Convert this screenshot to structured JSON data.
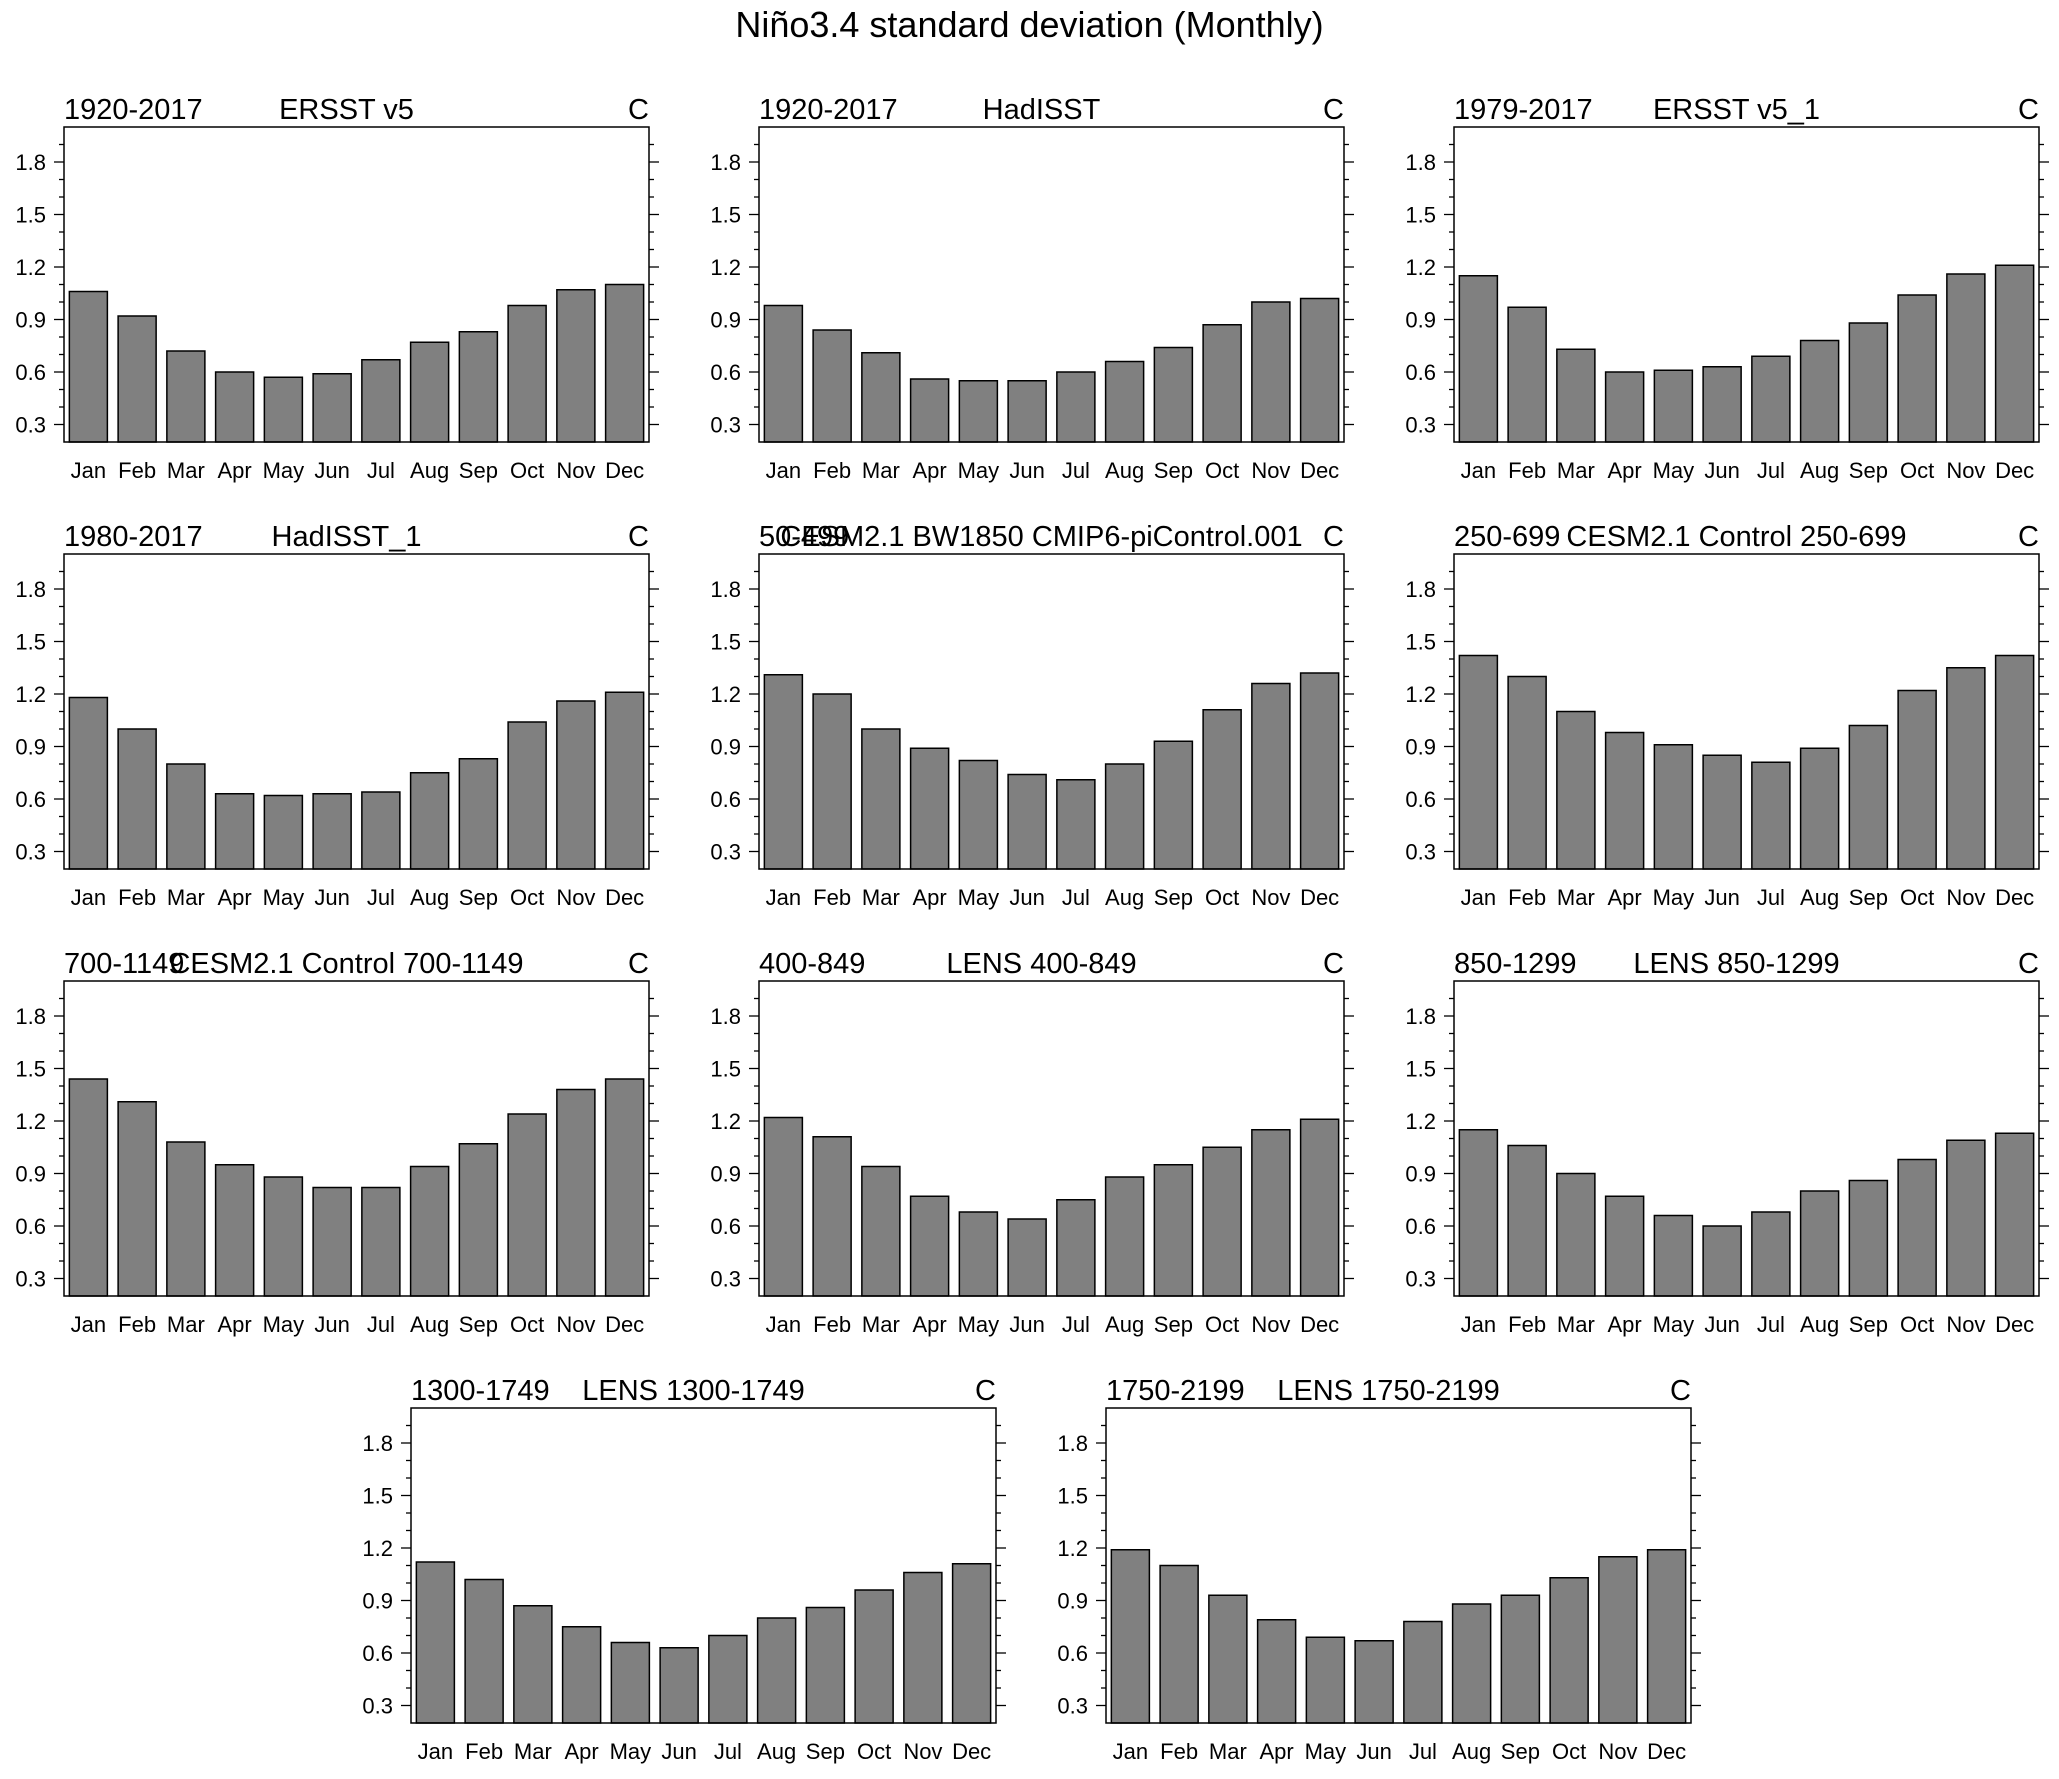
{
  "figure_title": "Niño3.4 standard deviation (Monthly)",
  "colors": {
    "bar_fill": "#808080",
    "bar_stroke": "#000000",
    "axis": "#000000",
    "background": "#ffffff"
  },
  "chart_data": [
    {
      "type": "bar",
      "title_left": "1920-2017",
      "title_center": "ERSST v5",
      "title_right": "C",
      "categories": [
        "Jan",
        "Feb",
        "Mar",
        "Apr",
        "May",
        "Jun",
        "Jul",
        "Aug",
        "Sep",
        "Oct",
        "Nov",
        "Dec"
      ],
      "values": [
        1.06,
        0.92,
        0.72,
        0.6,
        0.57,
        0.59,
        0.67,
        0.77,
        0.83,
        0.98,
        1.07,
        1.1
      ],
      "yticks": [
        "0.3",
        "0.6",
        "0.9",
        "1.2",
        "1.5",
        "1.8"
      ],
      "ylim": [
        0.2,
        2.0
      ]
    },
    {
      "type": "bar",
      "title_left": "1920-2017",
      "title_center": "HadISST",
      "title_right": "C",
      "categories": [
        "Jan",
        "Feb",
        "Mar",
        "Apr",
        "May",
        "Jun",
        "Jul",
        "Aug",
        "Sep",
        "Oct",
        "Nov",
        "Dec"
      ],
      "values": [
        0.98,
        0.84,
        0.71,
        0.56,
        0.55,
        0.55,
        0.6,
        0.66,
        0.74,
        0.87,
        1.0,
        1.02
      ],
      "yticks": [
        "0.3",
        "0.6",
        "0.9",
        "1.2",
        "1.5",
        "1.8"
      ],
      "ylim": [
        0.2,
        2.0
      ]
    },
    {
      "type": "bar",
      "title_left": "1979-2017",
      "title_center": "ERSST v5_1",
      "title_right": "C",
      "categories": [
        "Jan",
        "Feb",
        "Mar",
        "Apr",
        "May",
        "Jun",
        "Jul",
        "Aug",
        "Sep",
        "Oct",
        "Nov",
        "Dec"
      ],
      "values": [
        1.15,
        0.97,
        0.73,
        0.6,
        0.61,
        0.63,
        0.69,
        0.78,
        0.88,
        1.04,
        1.16,
        1.21
      ],
      "yticks": [
        "0.3",
        "0.6",
        "0.9",
        "1.2",
        "1.5",
        "1.8"
      ],
      "ylim": [
        0.2,
        2.0
      ]
    },
    {
      "type": "bar",
      "title_left": "1980-2017",
      "title_center": "HadISST_1",
      "title_right": "C",
      "categories": [
        "Jan",
        "Feb",
        "Mar",
        "Apr",
        "May",
        "Jun",
        "Jul",
        "Aug",
        "Sep",
        "Oct",
        "Nov",
        "Dec"
      ],
      "values": [
        1.18,
        1.0,
        0.8,
        0.63,
        0.62,
        0.63,
        0.64,
        0.75,
        0.83,
        1.04,
        1.16,
        1.21
      ],
      "yticks": [
        "0.3",
        "0.6",
        "0.9",
        "1.2",
        "1.5",
        "1.8"
      ],
      "ylim": [
        0.2,
        2.0
      ]
    },
    {
      "type": "bar",
      "title_left": "50-499",
      "title_center": "CESM2.1 BW1850 CMIP6-piControl.001",
      "title_right": "C",
      "categories": [
        "Jan",
        "Feb",
        "Mar",
        "Apr",
        "May",
        "Jun",
        "Jul",
        "Aug",
        "Sep",
        "Oct",
        "Nov",
        "Dec"
      ],
      "values": [
        1.31,
        1.2,
        1.0,
        0.89,
        0.82,
        0.74,
        0.71,
        0.8,
        0.93,
        1.11,
        1.26,
        1.32
      ],
      "yticks": [
        "0.3",
        "0.6",
        "0.9",
        "1.2",
        "1.5",
        "1.8"
      ],
      "ylim": [
        0.2,
        2.0
      ]
    },
    {
      "type": "bar",
      "title_left": "250-699",
      "title_center": "CESM2.1 Control 250-699",
      "title_right": "C",
      "categories": [
        "Jan",
        "Feb",
        "Mar",
        "Apr",
        "May",
        "Jun",
        "Jul",
        "Aug",
        "Sep",
        "Oct",
        "Nov",
        "Dec"
      ],
      "values": [
        1.42,
        1.3,
        1.1,
        0.98,
        0.91,
        0.85,
        0.81,
        0.89,
        1.02,
        1.22,
        1.35,
        1.42
      ],
      "yticks": [
        "0.3",
        "0.6",
        "0.9",
        "1.2",
        "1.5",
        "1.8"
      ],
      "ylim": [
        0.2,
        2.0
      ]
    },
    {
      "type": "bar",
      "title_left": "700-1149",
      "title_center": "CESM2.1 Control 700-1149",
      "title_right": "C",
      "categories": [
        "Jan",
        "Feb",
        "Mar",
        "Apr",
        "May",
        "Jun",
        "Jul",
        "Aug",
        "Sep",
        "Oct",
        "Nov",
        "Dec"
      ],
      "values": [
        1.44,
        1.31,
        1.08,
        0.95,
        0.88,
        0.82,
        0.82,
        0.94,
        1.07,
        1.24,
        1.38,
        1.44
      ],
      "yticks": [
        "0.3",
        "0.6",
        "0.9",
        "1.2",
        "1.5",
        "1.8"
      ],
      "ylim": [
        0.2,
        2.0
      ]
    },
    {
      "type": "bar",
      "title_left": "400-849",
      "title_center": "LENS 400-849",
      "title_right": "C",
      "categories": [
        "Jan",
        "Feb",
        "Mar",
        "Apr",
        "May",
        "Jun",
        "Jul",
        "Aug",
        "Sep",
        "Oct",
        "Nov",
        "Dec"
      ],
      "values": [
        1.22,
        1.11,
        0.94,
        0.77,
        0.68,
        0.64,
        0.75,
        0.88,
        0.95,
        1.05,
        1.15,
        1.21
      ],
      "yticks": [
        "0.3",
        "0.6",
        "0.9",
        "1.2",
        "1.5",
        "1.8"
      ],
      "ylim": [
        0.2,
        2.0
      ]
    },
    {
      "type": "bar",
      "title_left": "850-1299",
      "title_center": "LENS 850-1299",
      "title_right": "C",
      "categories": [
        "Jan",
        "Feb",
        "Mar",
        "Apr",
        "May",
        "Jun",
        "Jul",
        "Aug",
        "Sep",
        "Oct",
        "Nov",
        "Dec"
      ],
      "values": [
        1.15,
        1.06,
        0.9,
        0.77,
        0.66,
        0.6,
        0.68,
        0.8,
        0.86,
        0.98,
        1.09,
        1.13
      ],
      "yticks": [
        "0.3",
        "0.6",
        "0.9",
        "1.2",
        "1.5",
        "1.8"
      ],
      "ylim": [
        0.2,
        2.0
      ]
    },
    {
      "type": "bar",
      "title_left": "1300-1749",
      "title_center": "LENS 1300-1749",
      "title_right": "C",
      "categories": [
        "Jan",
        "Feb",
        "Mar",
        "Apr",
        "May",
        "Jun",
        "Jul",
        "Aug",
        "Sep",
        "Oct",
        "Nov",
        "Dec"
      ],
      "values": [
        1.12,
        1.02,
        0.87,
        0.75,
        0.66,
        0.63,
        0.7,
        0.8,
        0.86,
        0.96,
        1.06,
        1.11
      ],
      "yticks": [
        "0.3",
        "0.6",
        "0.9",
        "1.2",
        "1.5",
        "1.8"
      ],
      "ylim": [
        0.2,
        2.0
      ]
    },
    {
      "type": "bar",
      "title_left": "1750-2199",
      "title_center": "LENS 1750-2199",
      "title_right": "C",
      "categories": [
        "Jan",
        "Feb",
        "Mar",
        "Apr",
        "May",
        "Jun",
        "Jul",
        "Aug",
        "Sep",
        "Oct",
        "Nov",
        "Dec"
      ],
      "values": [
        1.19,
        1.1,
        0.93,
        0.79,
        0.69,
        0.67,
        0.78,
        0.88,
        0.93,
        1.03,
        1.15,
        1.19
      ],
      "yticks": [
        "0.3",
        "0.6",
        "0.9",
        "1.2",
        "1.5",
        "1.8"
      ],
      "ylim": [
        0.2,
        2.0
      ]
    }
  ]
}
